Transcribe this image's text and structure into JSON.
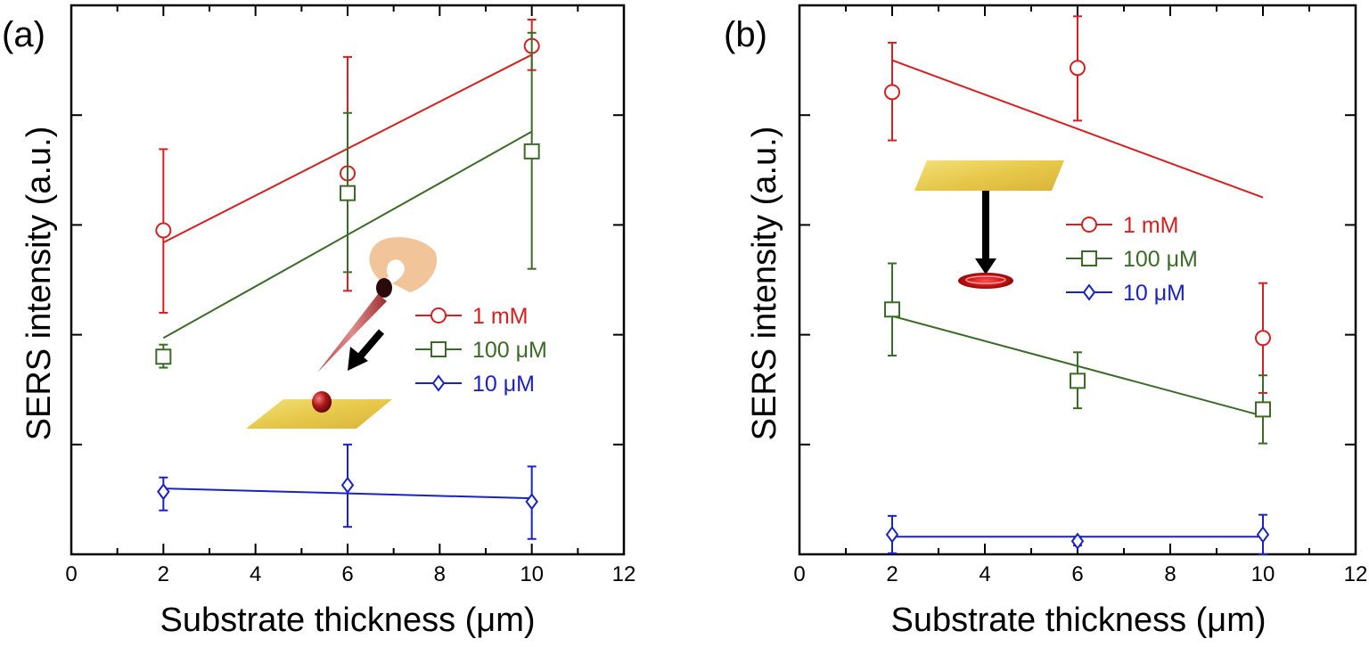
{
  "chart_data": [
    {
      "panel_label": "(a)",
      "type": "scatter",
      "xlabel": "Substrate thickness (μm)",
      "ylabel": "SERS intensity (a.u.)",
      "xlim": [
        0,
        12
      ],
      "ylim": [
        0,
        5
      ],
      "x_ticks": [
        0,
        2,
        4,
        6,
        8,
        10,
        12
      ],
      "x_tick_labels": [
        "0",
        "2",
        "4",
        "6",
        "8",
        "10",
        "12"
      ],
      "y_ticks": [
        1,
        2,
        3,
        4
      ],
      "illustration": "pipette-drop-on-substrate",
      "series": [
        {
          "name": "1 mM",
          "marker": "circle",
          "color": "#d42020",
          "x": [
            2,
            6,
            10
          ],
          "y": [
            2.95,
            3.47,
            4.63
          ],
          "err": [
            [
              0.75,
              0.74
            ],
            [
              1.07,
              1.06
            ],
            [
              0.22,
              0.24
            ]
          ],
          "fit": {
            "x": [
              2,
              10
            ],
            "y": [
              2.84,
              4.55
            ]
          }
        },
        {
          "name": "100 μM",
          "marker": "square",
          "color": "#3c6a28",
          "x": [
            2,
            6,
            10
          ],
          "y": [
            1.8,
            3.29,
            3.67
          ],
          "err": [
            [
              0.1,
              0.11
            ],
            [
              0.72,
              0.73
            ],
            [
              1.07,
              1.08
            ]
          ],
          "fit": {
            "x": [
              2,
              10
            ],
            "y": [
              1.97,
              3.85
            ]
          }
        },
        {
          "name": "10 μM",
          "marker": "diamond",
          "color": "#1a22c2",
          "x": [
            2,
            6,
            10
          ],
          "y": [
            0.57,
            0.63,
            0.48
          ],
          "err": [
            [
              0.17,
              0.13
            ],
            [
              0.38,
              0.37
            ],
            [
              0.34,
              0.32
            ]
          ],
          "fit": {
            "x": [
              2,
              10
            ],
            "y": [
              0.6,
              0.51
            ]
          }
        }
      ]
    },
    {
      "panel_label": "(b)",
      "type": "scatter",
      "xlabel": "Substrate thickness (μm)",
      "ylabel": "SERS intensity (a.u.)",
      "xlim": [
        0,
        12
      ],
      "ylim": [
        0,
        5
      ],
      "x_ticks": [
        0,
        2,
        4,
        6,
        8,
        10,
        12
      ],
      "x_tick_labels": [
        "0",
        "2",
        "4",
        "6",
        "8",
        "10",
        "12"
      ],
      "y_ticks": [
        1,
        2,
        3,
        4
      ],
      "illustration": "drop-falling-from-substrate",
      "series": [
        {
          "name": "1 mM",
          "marker": "circle",
          "color": "#d42020",
          "x": [
            2,
            6,
            10
          ],
          "y": [
            4.21,
            4.43,
            1.97
          ],
          "err": [
            [
              0.44,
              0.45
            ],
            [
              0.48,
              0.47
            ],
            [
              0.5,
              0.5
            ]
          ],
          "fit": {
            "x": [
              2,
              10
            ],
            "y": [
              4.5,
              3.25
            ]
          }
        },
        {
          "name": "100 μM",
          "marker": "square",
          "color": "#3c6a28",
          "x": [
            2,
            6,
            10
          ],
          "y": [
            2.23,
            1.58,
            1.32
          ],
          "err": [
            [
              0.42,
              0.42
            ],
            [
              0.25,
              0.26
            ],
            [
              0.31,
              0.31
            ]
          ],
          "fit": {
            "x": [
              2,
              10
            ],
            "y": [
              2.17,
              1.26
            ]
          }
        },
        {
          "name": "10 μM",
          "marker": "diamond",
          "color": "#1a22c2",
          "x": [
            2,
            6,
            10
          ],
          "y": [
            0.18,
            0.12,
            0.18
          ],
          "err": [
            [
              0.17,
              0.17
            ],
            [
              0.04,
              0.04
            ],
            [
              0.18,
              0.18
            ]
          ],
          "fit": {
            "x": [
              2,
              10
            ],
            "y": [
              0.16,
              0.16
            ]
          }
        }
      ]
    }
  ]
}
